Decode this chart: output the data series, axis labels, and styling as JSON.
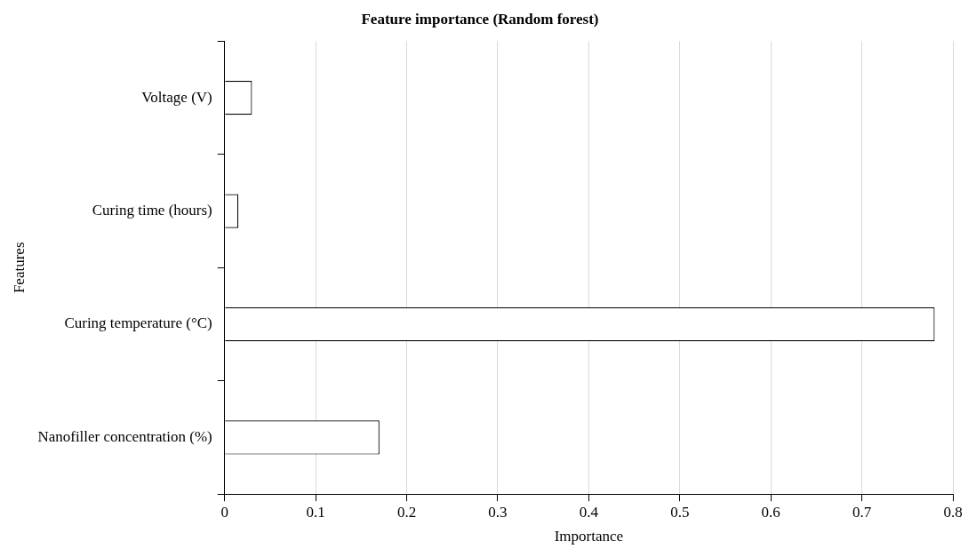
{
  "chart_data": {
    "type": "bar",
    "orientation": "horizontal",
    "title": "Feature importance (Random forest)",
    "xlabel": "Importance",
    "ylabel": "Features",
    "categories": [
      "Voltage (V)",
      "Curing time (hours)",
      "Curing temperature (°C)",
      "Nanofiller concentration (%)"
    ],
    "values": [
      0.03,
      0.015,
      0.78,
      0.17
    ],
    "color": "#ffffff",
    "xlim": [
      0,
      0.8
    ],
    "xticks": [
      0,
      0.1,
      0.2,
      0.3,
      0.4,
      0.5,
      0.6,
      0.7,
      0.8
    ],
    "grid": "x",
    "legend": false
  }
}
